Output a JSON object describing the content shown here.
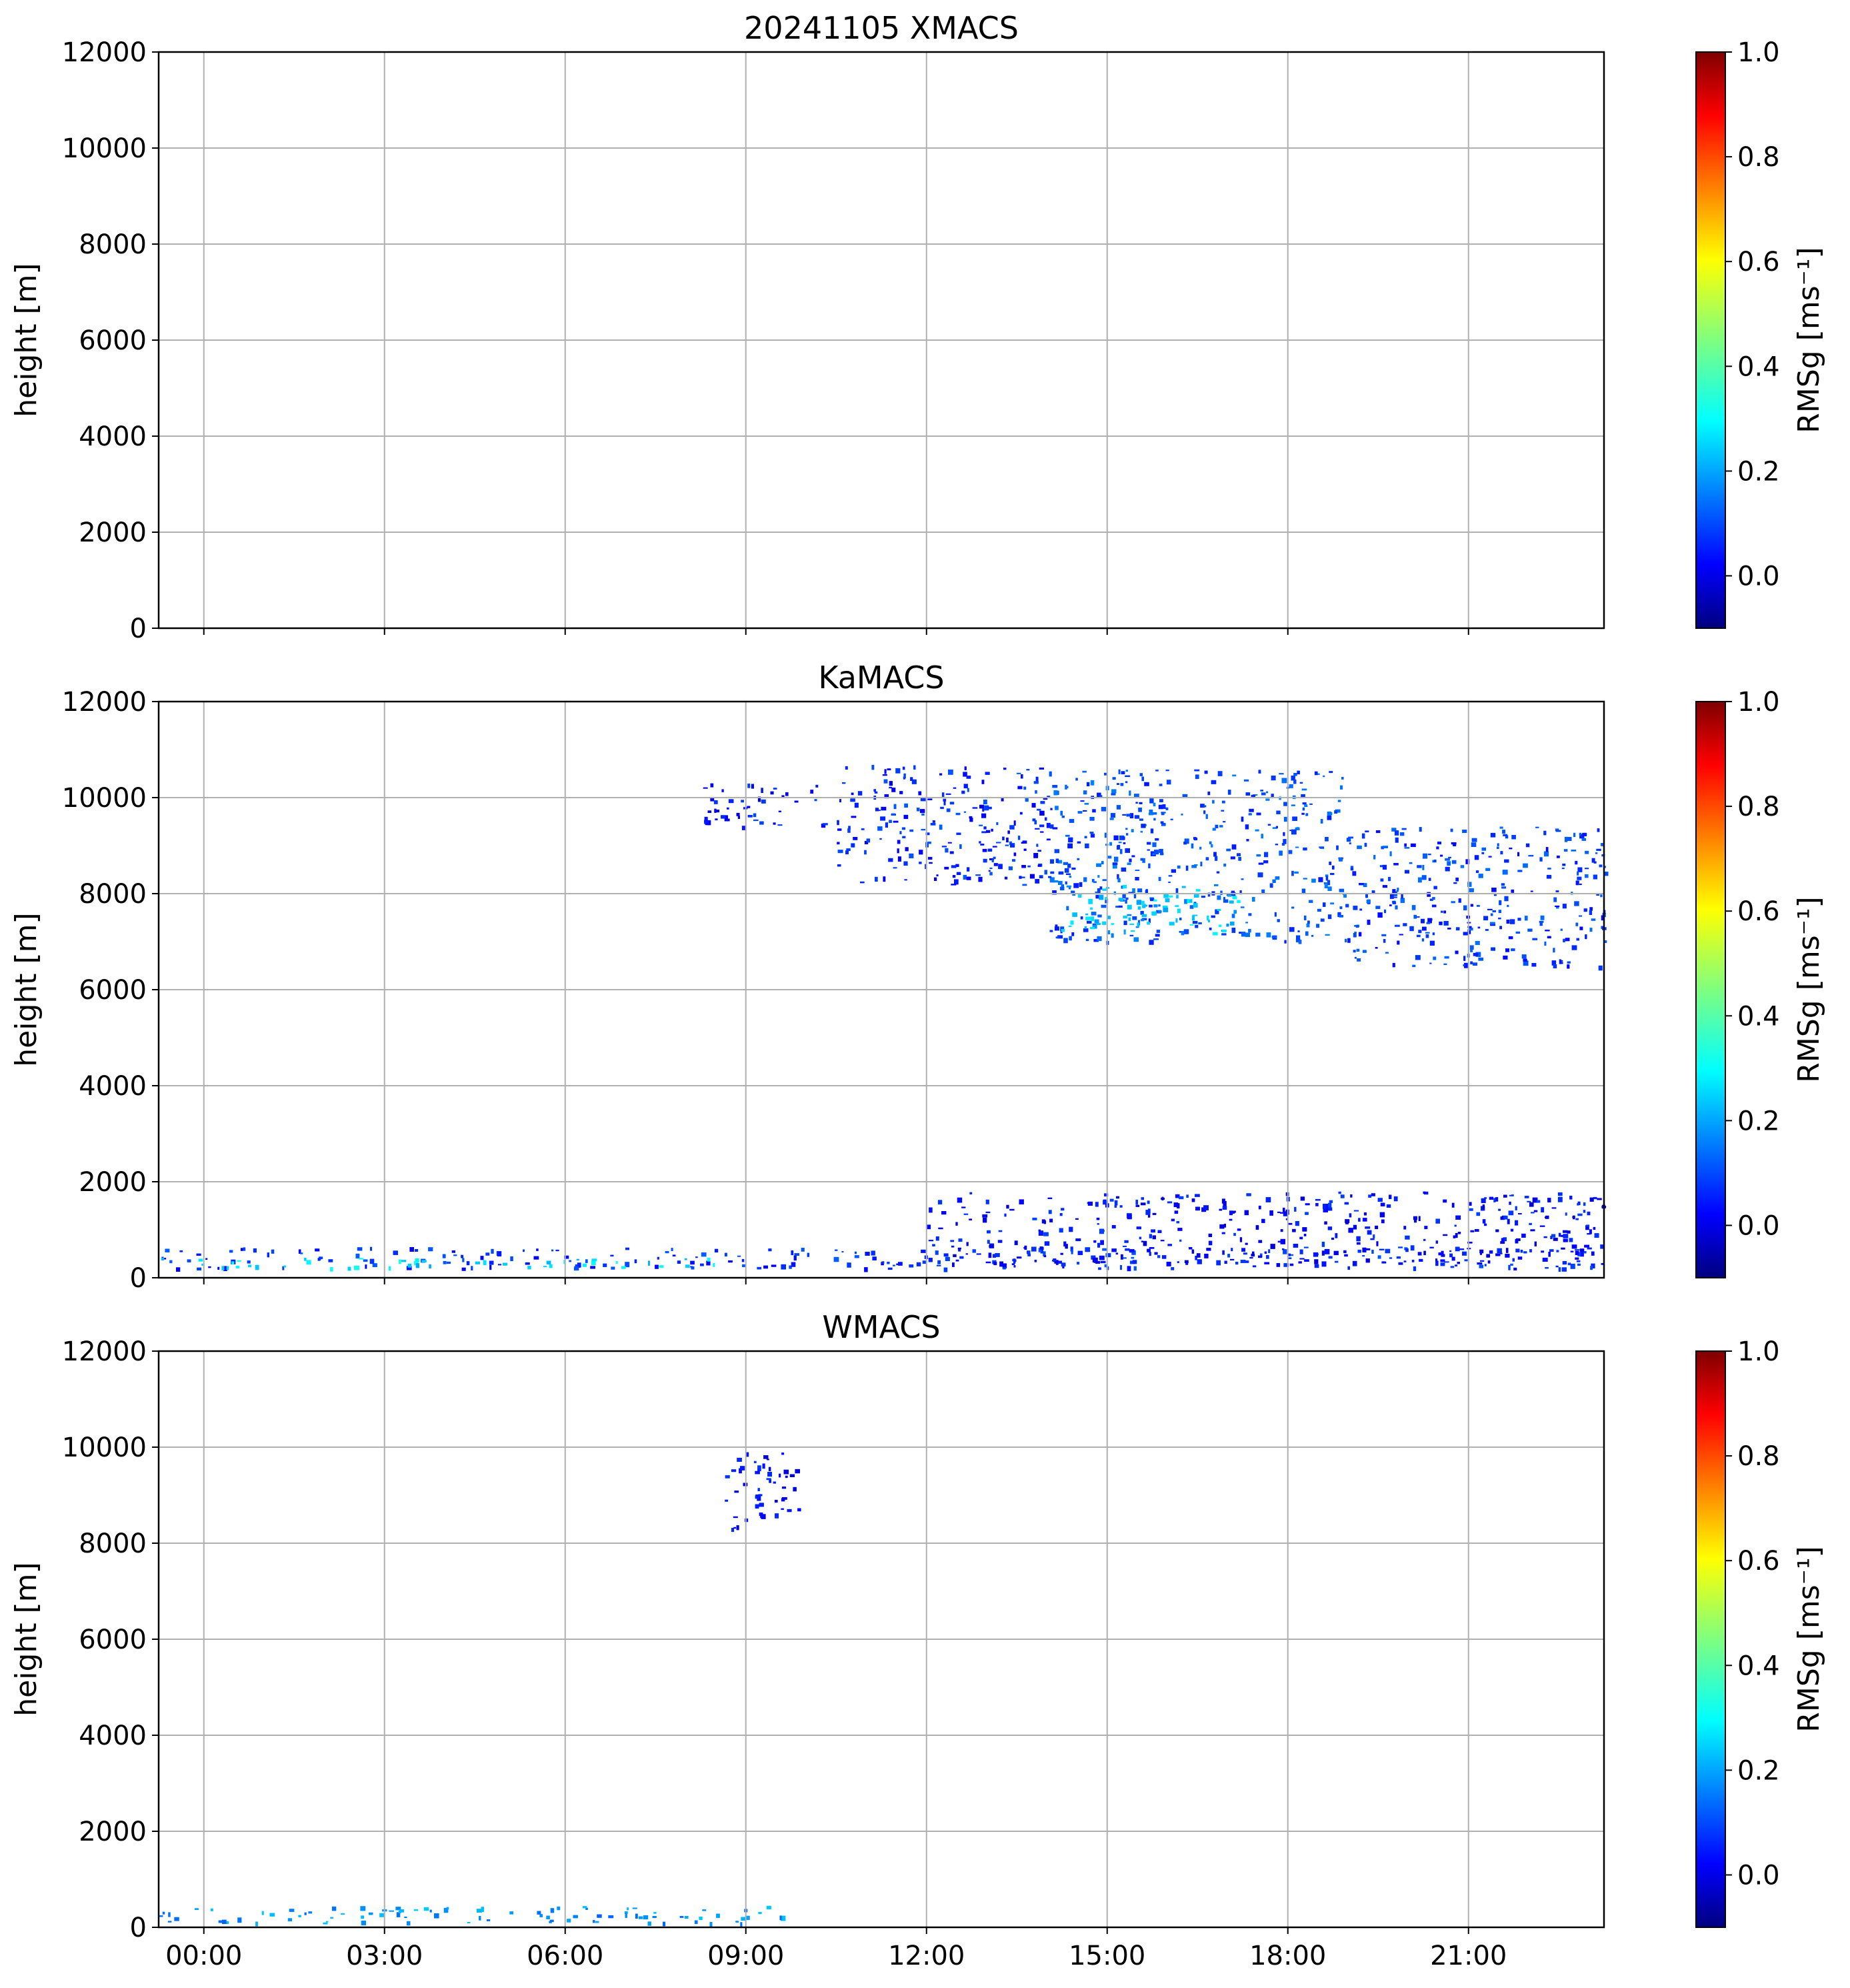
{
  "chart_data": [
    {
      "type": "heatmap",
      "title": "20241105 XMACS",
      "ylabel": "height [m]",
      "ylim": [
        0,
        12000
      ],
      "yticks": [
        "0",
        "2000",
        "4000",
        "6000",
        "8000",
        "10000",
        "12000"
      ],
      "xlim_hours": [
        -0.75,
        23.25
      ],
      "xticks": [],
      "grid": true,
      "colorbar": {
        "label": "RMSg [ms⁻¹]",
        "range": [
          -0.1,
          1.0
        ],
        "ticks": [
          "0.0",
          "0.2",
          "0.4",
          "0.6",
          "0.8",
          "1.0"
        ],
        "colormap": "jet"
      },
      "regions": []
    },
    {
      "type": "heatmap",
      "title": "KaMACS",
      "ylabel": "height [m]",
      "ylim": [
        0,
        12000
      ],
      "yticks": [
        "0",
        "2000",
        "4000",
        "6000",
        "8000",
        "10000",
        "12000"
      ],
      "xlim_hours": [
        -0.75,
        23.25
      ],
      "xticks": [],
      "grid": true,
      "colorbar": {
        "label": "RMSg [ms⁻¹]",
        "range": [
          -0.1,
          1.0
        ],
        "ticks": [
          "0.0",
          "0.2",
          "0.4",
          "0.6",
          "0.8",
          "1.0"
        ],
        "colormap": "jet"
      },
      "regions": [
        {
          "desc": "boundary layer band",
          "t": [
            -0.75,
            23.25
          ],
          "h": [
            200,
            650
          ],
          "v": 0.08
        },
        {
          "desc": "boundary layer echo core",
          "t": [
            -0.75,
            8.5
          ],
          "h": [
            220,
            420
          ],
          "v": 0.28
        },
        {
          "desc": "scattered low echoes",
          "t": [
            12,
            23.25
          ],
          "h": [
            300,
            1800
          ],
          "v": 0.05
        },
        {
          "desc": "cirrus 09-10h",
          "t": [
            8.2,
            10.3
          ],
          "h": [
            9400,
            10300
          ],
          "v": 0.06
        },
        {
          "desc": "cirrus 10.5-14h",
          "t": [
            10.5,
            14
          ],
          "h": [
            8200,
            10700
          ],
          "v": 0.08
        },
        {
          "desc": "cirrus 14-19h",
          "t": [
            14,
            19
          ],
          "h": [
            7000,
            10600
          ],
          "v": 0.12
        },
        {
          "desc": "cirrus base 15-17h",
          "t": [
            14.2,
            17.2
          ],
          "h": [
            7200,
            8200
          ],
          "v": 0.25
        },
        {
          "desc": "cirrus 19-23h",
          "t": [
            19,
            23.25
          ],
          "h": [
            6500,
            9400
          ],
          "v": 0.1
        }
      ]
    },
    {
      "type": "heatmap",
      "title": "WMACS",
      "ylabel": "height [m]",
      "ylim": [
        0,
        12000
      ],
      "yticks": [
        "0",
        "2000",
        "4000",
        "6000",
        "8000",
        "10000",
        "12000"
      ],
      "xlim_hours": [
        -0.75,
        23.25
      ],
      "xticks": [
        "00:00",
        "03:00",
        "06:00",
        "09:00",
        "12:00",
        "15:00",
        "18:00",
        "21:00"
      ],
      "xtick_hours": [
        0,
        3,
        6,
        9,
        12,
        15,
        18,
        21
      ],
      "grid": true,
      "colorbar": {
        "label": "RMSg [ms⁻¹]",
        "range": [
          -0.1,
          1.0
        ],
        "ticks": [
          "0.0",
          "0.2",
          "0.4",
          "0.6",
          "0.8",
          "1.0"
        ],
        "colormap": "jet"
      },
      "regions": [
        {
          "desc": "near-surface echoes",
          "t": [
            -0.75,
            9.8
          ],
          "h": [
            100,
            450
          ],
          "v": 0.2
        },
        {
          "desc": "cirrus fragment",
          "t": [
            8.6,
            9.9
          ],
          "h": [
            8300,
            9900
          ],
          "v": 0.04
        }
      ]
    }
  ]
}
